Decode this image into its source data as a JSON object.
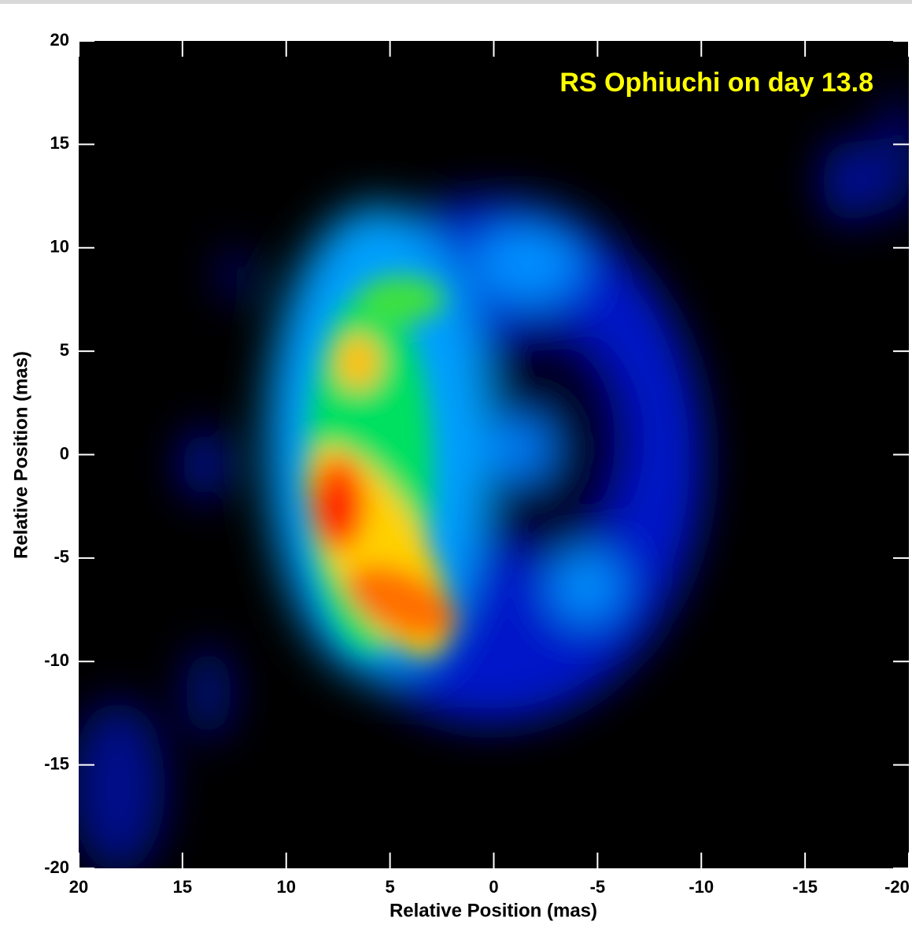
{
  "chart_data": {
    "type": "image",
    "annotation": "RS Ophiuchi on day 13.8",
    "x_label": "Relative Position (mas)",
    "y_label": "Relative Position (mas)",
    "xlim": [
      20,
      -20
    ],
    "ylim": [
      -20,
      20
    ],
    "xticks": [
      20,
      15,
      10,
      5,
      0,
      -5,
      -10,
      -15,
      -20
    ],
    "yticks": [
      20,
      15,
      10,
      5,
      0,
      -5,
      -10,
      -15,
      -20
    ],
    "annotation_color": "#ffff00"
  }
}
